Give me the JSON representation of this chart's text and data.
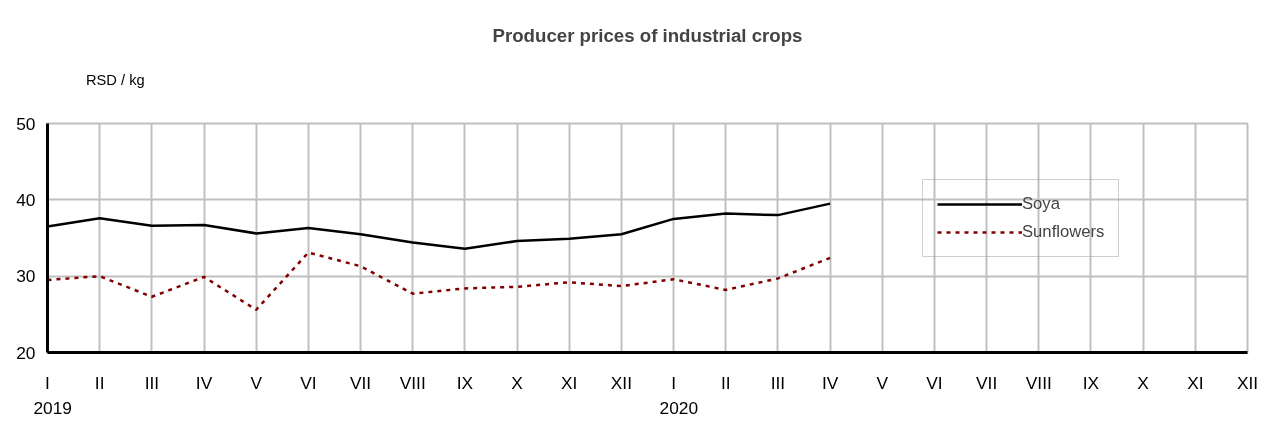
{
  "chart_data": {
    "type": "line",
    "title": "Producer prices of industrial crops",
    "ylabel": "RSD / kg",
    "categories": [
      "I",
      "II",
      "III",
      "IV",
      "V",
      "VI",
      "VII",
      "VIII",
      "IX",
      "X",
      "XI",
      "XII",
      "I",
      "II",
      "III",
      "IV",
      "V",
      "VI",
      "VII",
      "VIII",
      "IX",
      "X",
      "XI",
      "XII"
    ],
    "annotations": [
      "2019",
      "2020"
    ],
    "ylim": [
      20,
      50
    ],
    "yticks": [
      20,
      30,
      40,
      50
    ],
    "grid": true,
    "legend": "right",
    "series": [
      {
        "name": "Soya",
        "color": "#000000",
        "line_style": "solid",
        "values": [
          36.5,
          37.6,
          36.6,
          36.7,
          35.6,
          36.3,
          35.5,
          34.4,
          33.6,
          34.6,
          34.9,
          35.5,
          37.5,
          38.2,
          38.0,
          39.5,
          null,
          null,
          null,
          null,
          null,
          null,
          null,
          null
        ]
      },
      {
        "name": "Sunflowers",
        "color": "#800000",
        "line_style": "dashed",
        "values": [
          29.5,
          30.0,
          27.3,
          29.9,
          25.6,
          33.1,
          31.3,
          27.7,
          28.4,
          28.6,
          29.2,
          28.7,
          29.6,
          28.2,
          29.7,
          32.4,
          null,
          null,
          null,
          null,
          null,
          null,
          null,
          null
        ]
      }
    ]
  }
}
